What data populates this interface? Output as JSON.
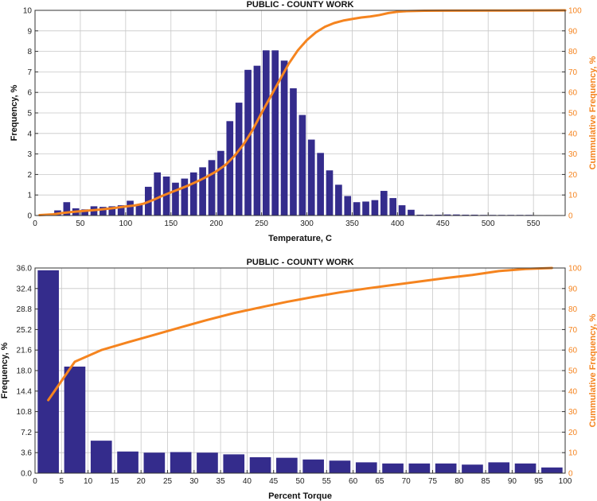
{
  "chart_data": [
    {
      "type": "bar",
      "title": "PUBLIC - COUNTY WORK",
      "xlabel": "Temperature, C",
      "ylabel": "Frequency, %",
      "y2label": "Cummulative Frequency, %",
      "xlim": [
        0,
        585
      ],
      "ylim": [
        0,
        10
      ],
      "y2lim": [
        0,
        100
      ],
      "bin_width": 10,
      "x_ticks": [
        0,
        50,
        100,
        150,
        200,
        250,
        300,
        350,
        400,
        450,
        500,
        550
      ],
      "y_ticks": [
        0,
        1,
        2,
        3,
        4,
        5,
        6,
        7,
        8,
        9,
        10
      ],
      "y2_ticks": [
        0,
        10,
        20,
        30,
        40,
        50,
        60,
        70,
        80,
        90,
        100
      ],
      "series": [
        {
          "name": "Frequency",
          "color": "#342c8c",
          "bin_centers": [
            5,
            15,
            25,
            35,
            45,
            55,
            65,
            75,
            85,
            95,
            105,
            115,
            125,
            135,
            145,
            155,
            165,
            175,
            185,
            195,
            205,
            215,
            225,
            235,
            245,
            255,
            265,
            275,
            285,
            295,
            305,
            315,
            325,
            335,
            345,
            355,
            365,
            375,
            385,
            395,
            405,
            415,
            425,
            435,
            445,
            455,
            465,
            475,
            485,
            495,
            505,
            515,
            525,
            535,
            545,
            555,
            565,
            575
          ],
          "values": [
            0.02,
            0.05,
            0.25,
            0.65,
            0.35,
            0.3,
            0.45,
            0.42,
            0.45,
            0.5,
            0.72,
            0.55,
            1.4,
            2.1,
            1.9,
            1.6,
            1.8,
            2.1,
            2.35,
            2.7,
            3.15,
            4.6,
            5.5,
            7.1,
            7.3,
            8.05,
            8.05,
            7.55,
            6.2,
            4.9,
            3.7,
            3.05,
            2.2,
            1.5,
            0.95,
            0.65,
            0.68,
            0.75,
            1.2,
            0.85,
            0.5,
            0.28,
            0.04,
            0.04,
            0.04,
            0.05,
            0.05,
            0.04,
            0.04,
            0.03,
            0.03,
            0.03,
            0.03,
            0.03,
            0.03,
            0.02,
            0.02,
            0.02
          ]
        },
        {
          "name": "Cumulative Frequency",
          "color": "#f5841f",
          "x": [
            5,
            20,
            30,
            40,
            55,
            70,
            80,
            90,
            100,
            110,
            120,
            130,
            140,
            150,
            160,
            170,
            180,
            190,
            200,
            210,
            220,
            230,
            240,
            250,
            260,
            270,
            280,
            290,
            300,
            310,
            320,
            330,
            340,
            350,
            360,
            370,
            380,
            390,
            400,
            410,
            420,
            430,
            450,
            500,
            550,
            585
          ],
          "values": [
            0.2,
            0.6,
            1.2,
            1.7,
            2.3,
            2.8,
            3.3,
            3.8,
            4.4,
            4.9,
            5.8,
            7.5,
            9.5,
            11.3,
            13.0,
            14.8,
            16.8,
            19.0,
            21.5,
            24.6,
            29.0,
            34.6,
            41.6,
            50.0,
            58.0,
            66.0,
            74.0,
            80.5,
            85.5,
            89.3,
            92.0,
            93.8,
            95.0,
            95.8,
            96.5,
            97.0,
            97.7,
            98.7,
            99.3,
            99.6,
            99.7,
            99.8,
            99.85,
            99.9,
            99.95,
            100
          ]
        }
      ]
    },
    {
      "type": "bar",
      "title": "PUBLIC - COUNTY WORK",
      "xlabel": "Percent Torque",
      "ylabel": "Frequency, %",
      "y2label": "Cummulative Frequency, %",
      "xlim": [
        0,
        100
      ],
      "ylim": [
        0,
        36
      ],
      "y2lim": [
        0,
        100
      ],
      "x_ticks": [
        0,
        5,
        10,
        15,
        20,
        25,
        30,
        35,
        40,
        45,
        50,
        55,
        60,
        65,
        70,
        75,
        80,
        85,
        90,
        95,
        100
      ],
      "y_ticks": [
        "0.0",
        "3.6",
        "7.2",
        "10.8",
        "14.4",
        "18.0",
        "21.6",
        "25.2",
        "28.8",
        "32.4",
        "36.0"
      ],
      "y2_ticks": [
        0,
        10,
        20,
        30,
        40,
        50,
        60,
        70,
        80,
        90,
        100
      ],
      "series": [
        {
          "name": "Frequency",
          "color": "#342c8c",
          "bin_centers": [
            2.5,
            7.5,
            12.5,
            17.5,
            22.5,
            27.5,
            32.5,
            37.5,
            42.5,
            47.5,
            52.5,
            57.5,
            62.5,
            67.5,
            72.5,
            77.5,
            82.5,
            87.5,
            92.5,
            97.5
          ],
          "values": [
            35.6,
            18.7,
            5.7,
            3.8,
            3.6,
            3.7,
            3.6,
            3.3,
            2.8,
            2.7,
            2.4,
            2.2,
            1.9,
            1.7,
            1.7,
            1.7,
            1.5,
            1.9,
            1.7,
            1.0
          ]
        },
        {
          "name": "Cumulative Frequency",
          "color": "#f5841f",
          "x": [
            2.5,
            7.5,
            12.5,
            17.5,
            22.5,
            27.5,
            32.5,
            37.5,
            42.5,
            47.5,
            52.5,
            57.5,
            62.5,
            67.5,
            72.5,
            77.5,
            82.5,
            87.5,
            92.5,
            97.5
          ],
          "values": [
            35.6,
            54.3,
            60.0,
            63.8,
            67.4,
            71.1,
            74.7,
            78.0,
            80.8,
            83.5,
            85.9,
            88.1,
            90.0,
            91.7,
            93.4,
            95.1,
            96.6,
            98.5,
            99.5,
            100
          ]
        }
      ]
    }
  ]
}
